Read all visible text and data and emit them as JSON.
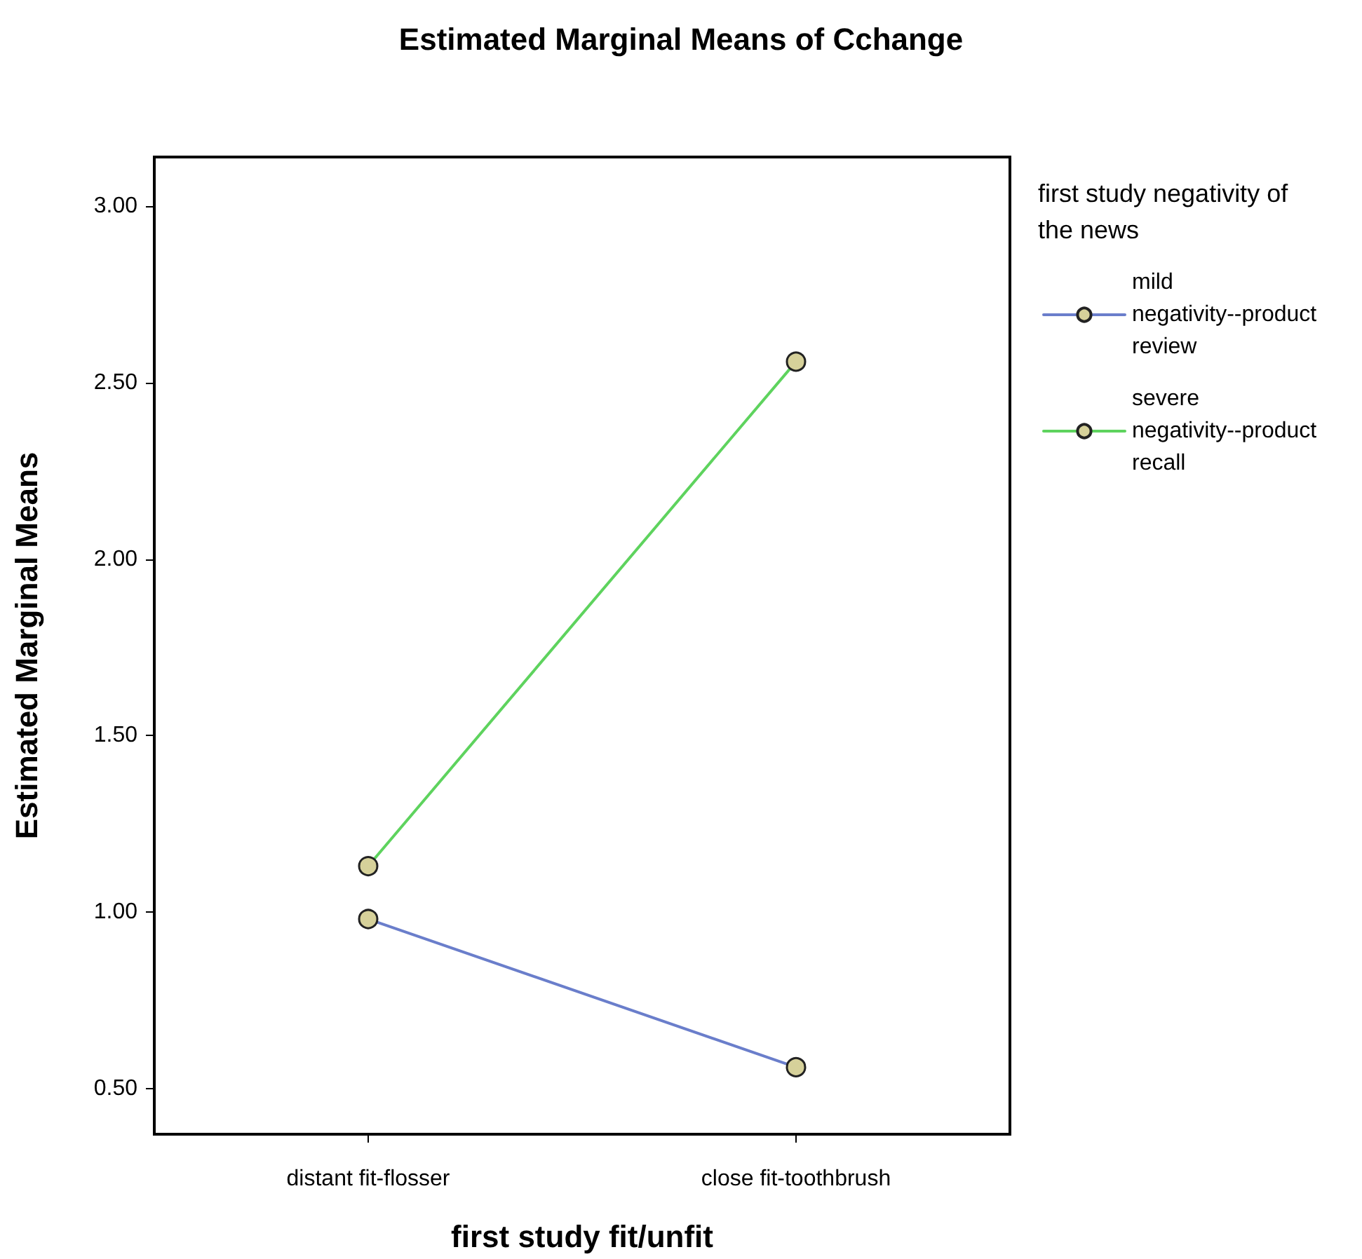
{
  "chart_data": {
    "type": "line",
    "title": "Estimated Marginal Means of Cchange",
    "xlabel": "first study fit/unfit",
    "ylabel": "Estimated Marginal Means",
    "legend_title": "first study negativity of the news",
    "categories": [
      "distant fit-flosser",
      "close fit-toothbrush"
    ],
    "series": [
      {
        "name": "mild negativity--product review",
        "color": "#6a7ecb",
        "values": [
          0.98,
          0.56
        ]
      },
      {
        "name": "severe negativity--product recall",
        "color": "#5ed35e",
        "values": [
          1.13,
          2.56
        ]
      }
    ],
    "ylim": [
      0.37,
      3.14
    ],
    "yticks": [
      {
        "value": 0.5,
        "label": "0.50"
      },
      {
        "value": 1,
        "label": "1.00"
      },
      {
        "value": 1.5,
        "label": "1.50"
      },
      {
        "value": 2,
        "label": "2.00"
      },
      {
        "value": 2.5,
        "label": "2.50"
      },
      {
        "value": 3,
        "label": "3.00"
      }
    ],
    "grid": false,
    "legend": "right",
    "marker": "circle",
    "line_style": "solid"
  }
}
